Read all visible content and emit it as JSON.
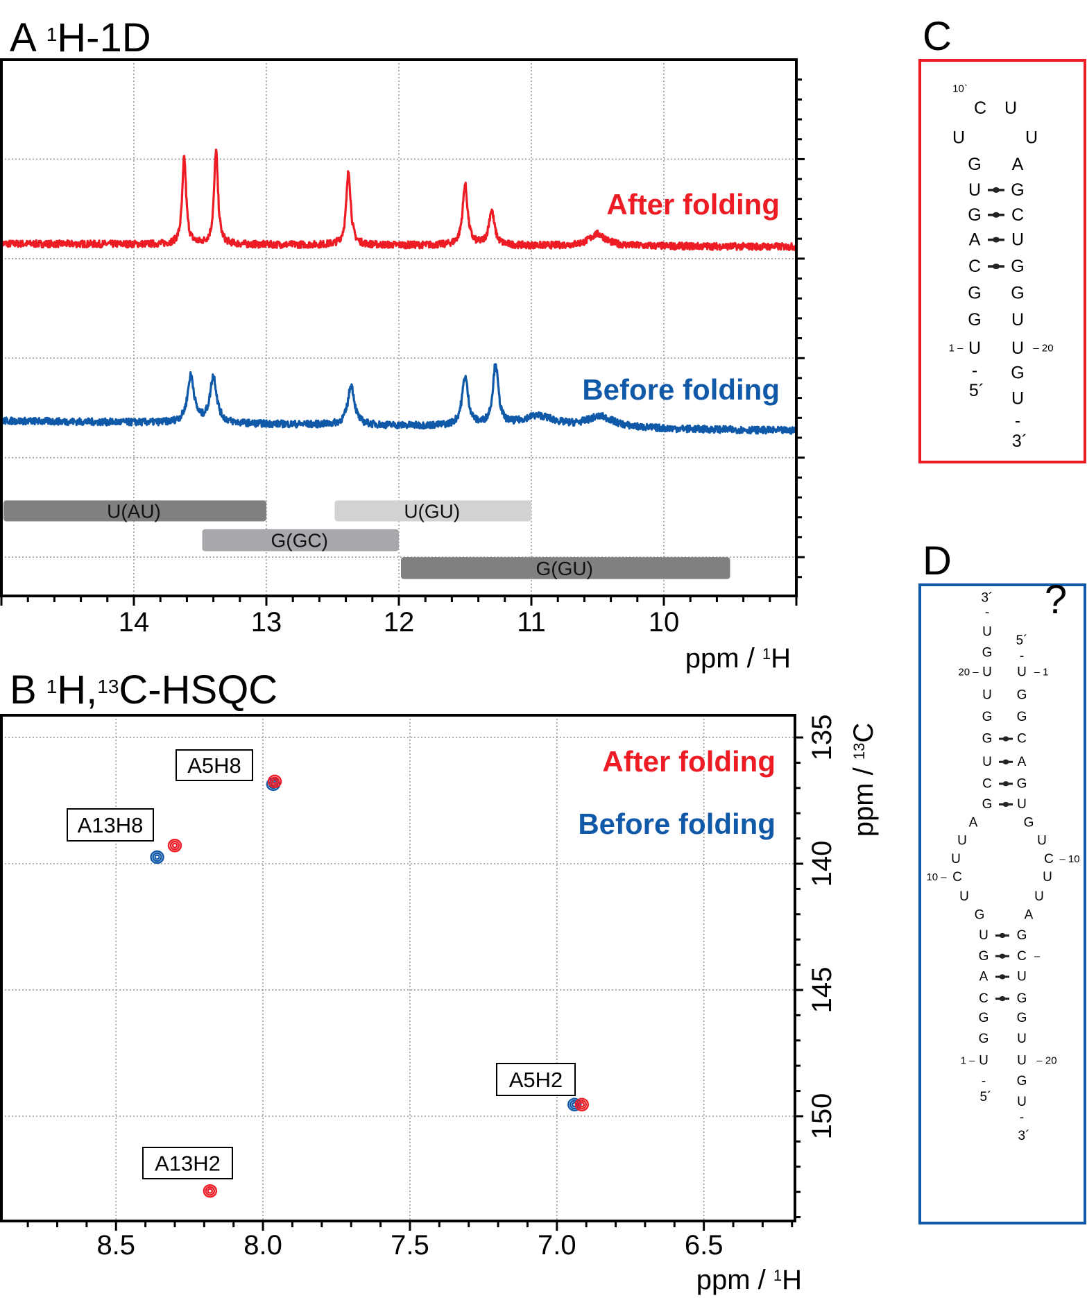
{
  "colors": {
    "after": "#ed1c24",
    "before": "#1059a8",
    "bar_dark": "#808083",
    "bar_mid": "#a7a8ab",
    "bar_light": "#d1d2d4"
  },
  "chart_data": [
    {
      "type": "line",
      "panel_label": "A",
      "title_sup": "1",
      "title_main": "H-1D",
      "xlabel_pre": "ppm / ",
      "xlabel_sup": "1",
      "xlabel_post": "H",
      "xlim": [
        15.0,
        9.0
      ],
      "ylim": [
        0.61,
        6.0
      ],
      "ylabel": "",
      "xticks": [
        "14",
        "13",
        "12",
        "11",
        "10"
      ],
      "grid": true,
      "series": [
        {
          "name": "After folding",
          "baseline": [
            4.15,
            4.12
          ],
          "peaks": [
            {
              "ppm": 13.62,
              "height": 0.87,
              "width": 0.035
            },
            {
              "ppm": 13.38,
              "height": 0.94,
              "width": 0.035
            },
            {
              "ppm": 12.38,
              "height": 0.74,
              "width": 0.04
            },
            {
              "ppm": 11.5,
              "height": 0.61,
              "width": 0.045
            },
            {
              "ppm": 11.3,
              "height": 0.35,
              "width": 0.05
            },
            {
              "ppm": 10.5,
              "height": 0.12,
              "width": 0.15
            }
          ]
        },
        {
          "name": "Before folding",
          "baseline": [
            2.37,
            2.27
          ],
          "peaks": [
            {
              "ppm": 13.57,
              "height": 0.47,
              "width": 0.06
            },
            {
              "ppm": 13.4,
              "height": 0.47,
              "width": 0.06
            },
            {
              "ppm": 12.36,
              "height": 0.4,
              "width": 0.06
            },
            {
              "ppm": 11.5,
              "height": 0.49,
              "width": 0.055
            },
            {
              "ppm": 11.27,
              "height": 0.61,
              "width": 0.05
            },
            {
              "ppm": 10.95,
              "height": 0.11,
              "width": 0.3
            },
            {
              "ppm": 10.48,
              "height": 0.11,
              "width": 0.25
            }
          ]
        }
      ],
      "ranges": [
        {
          "label": "U(AU)",
          "from": 15.0,
          "to": 13.0,
          "shade": "bar_dark"
        },
        {
          "label": "U(GU)",
          "from": 12.5,
          "to": 11.0,
          "shade": "bar_light"
        },
        {
          "label": "G(GC)",
          "from": 13.5,
          "to": 12.0,
          "shade": "bar_mid"
        },
        {
          "label": "G(GU)",
          "from": 12.0,
          "to": 9.5,
          "shade": "bar_dark"
        }
      ]
    },
    {
      "type": "scatter",
      "panel_label": "B",
      "title_sup1": "1",
      "title_mid": "H,",
      "title_sup2": "13",
      "title_main": "C-HSQC",
      "xlabel_pre": "ppm / ",
      "xlabel_sup": "1",
      "xlabel_post": "H",
      "ylabel_pre": "ppm / ",
      "ylabel_sup": "13",
      "ylabel_post": "C",
      "xlim": [
        8.89,
        6.19
      ],
      "ylim": [
        134.12,
        154.15
      ],
      "xticks": [
        "8.5",
        "8.0",
        "7.5",
        "7.0",
        "6.5"
      ],
      "yticks": [
        "135",
        "140",
        "145",
        "150"
      ],
      "grid": true,
      "peaks": [
        {
          "label": "A5H8",
          "after": [
            7.96,
            136.74
          ],
          "before": [
            7.965,
            136.85
          ]
        },
        {
          "label": "A13H8",
          "after": [
            8.3,
            139.28
          ],
          "before": [
            8.36,
            139.74
          ]
        },
        {
          "label": "A5H2",
          "after": [
            6.915,
            149.54
          ],
          "before": [
            6.94,
            149.54
          ]
        },
        {
          "label": "A13H2",
          "after": [
            8.18,
            152.96
          ],
          "before": null
        }
      ]
    }
  ],
  "legend": {
    "after": "After folding",
    "before": "Before folding"
  },
  "structure_c": {
    "panel_label": "C",
    "items": [
      {
        "t": "10`"
      },
      {
        "t": "C"
      },
      {
        "t": "U"
      },
      {
        "t": "U"
      },
      {
        "t": "U"
      },
      {
        "t": "G"
      },
      {
        "t": "U"
      },
      {
        "t": "G"
      },
      {
        "t": "A",
        "hl": true
      },
      {
        "t": "C"
      },
      {
        "t": "G"
      },
      {
        "t": "G"
      },
      {
        "t": "U"
      },
      {
        "t": "A",
        "hl": true
      },
      {
        "t": "G"
      },
      {
        "t": "C"
      },
      {
        "t": "U"
      },
      {
        "t": "G"
      },
      {
        "t": "G"
      },
      {
        "t": "U"
      },
      {
        "t": "U"
      },
      {
        "t": "G"
      },
      {
        "t": "U"
      },
      {
        "t": "-"
      },
      {
        "t": "3´"
      },
      {
        "t": "-"
      },
      {
        "t": "5´"
      },
      {
        "t": "1 –"
      },
      {
        "t": "– 20"
      }
    ]
  },
  "structure_d": {
    "panel_label": "D",
    "question": "?",
    "items": [
      {
        "t": "3´"
      },
      {
        "t": "-"
      },
      {
        "t": "U"
      },
      {
        "t": "G"
      },
      {
        "t": "U"
      },
      {
        "t": "U"
      },
      {
        "t": "G"
      },
      {
        "t": "G"
      },
      {
        "t": "U"
      },
      {
        "t": "C"
      },
      {
        "t": "G"
      },
      {
        "t": "5´"
      },
      {
        "t": "-"
      },
      {
        "t": "U"
      },
      {
        "t": "G"
      },
      {
        "t": "G"
      },
      {
        "t": "C"
      },
      {
        "t": "A",
        "hl": true
      },
      {
        "t": "G"
      },
      {
        "t": "U"
      },
      {
        "t": "A",
        "hl": true
      },
      {
        "t": "U"
      },
      {
        "t": "U"
      },
      {
        "t": "C"
      },
      {
        "t": "U"
      },
      {
        "t": "G"
      },
      {
        "t": "G"
      },
      {
        "t": "U"
      },
      {
        "t": "C"
      },
      {
        "t": "U"
      },
      {
        "t": "U"
      },
      {
        "t": "A",
        "hl": true
      },
      {
        "t": "U"
      },
      {
        "t": "G"
      },
      {
        "t": "A",
        "hl": true
      },
      {
        "t": "C"
      },
      {
        "t": "G"
      },
      {
        "t": "G"
      },
      {
        "t": "U"
      },
      {
        "t": "-"
      },
      {
        "t": "5´"
      },
      {
        "t": "G"
      },
      {
        "t": "C"
      },
      {
        "t": "U"
      },
      {
        "t": "G"
      },
      {
        "t": "G"
      },
      {
        "t": "U"
      },
      {
        "t": "U"
      },
      {
        "t": "G"
      },
      {
        "t": "U"
      },
      {
        "t": "-"
      },
      {
        "t": "3´"
      },
      {
        "t": "20 –"
      },
      {
        "t": "– 1"
      },
      {
        "t": "10 –"
      },
      {
        "t": "– 10"
      },
      {
        "t": "1 –"
      },
      {
        "t": "– 20"
      },
      {
        "t": "–"
      }
    ]
  }
}
